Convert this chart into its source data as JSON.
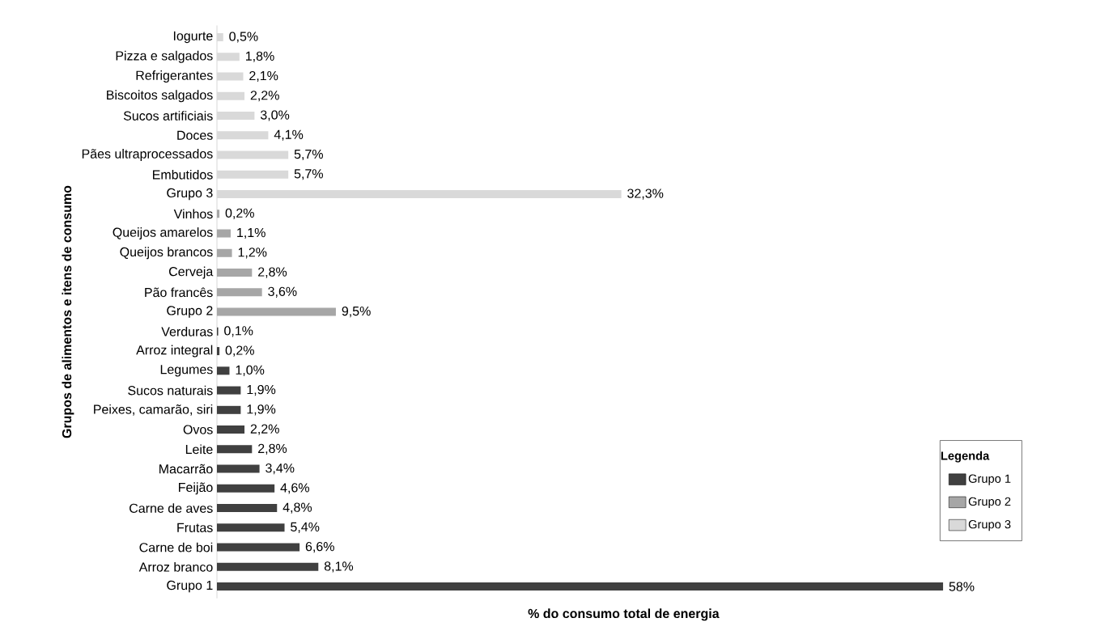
{
  "chart_data": {
    "type": "bar",
    "orientation": "horizontal",
    "xlabel": "% do consumo total de energia",
    "ylabel": "Grupos de alimentos e itens de consumo",
    "legend": "bottom right",
    "legend_title": "Legenda",
    "categories": [
      "Iogurte",
      "Pizza e salgados",
      "Refrigerantes",
      "Biscoitos salgados",
      "Sucos artificiais",
      "Doces",
      "Pães ultraprocessados",
      "Embutidos",
      "Grupo 3",
      "Vinhos",
      "Queijos amarelos",
      "Queijos brancos",
      "Cerveja",
      "Pão francês",
      "Grupo 2",
      "Verduras",
      "Arroz integral",
      "Legumes",
      "Sucos naturais",
      "Peixes, camarão, siri",
      "Ovos",
      "Leite",
      "Macarrão",
      "Feijão",
      "Carne de aves",
      "Frutas",
      "Carne de boi",
      "Arroz branco",
      "Grupo 1"
    ],
    "series": [
      {
        "name": "Grupo 1",
        "color": "#404040",
        "values": [
          null,
          null,
          null,
          null,
          null,
          null,
          null,
          null,
          null,
          null,
          null,
          null,
          null,
          null,
          null,
          0.1,
          0.2,
          1.0,
          1.9,
          1.9,
          2.2,
          2.8,
          3.4,
          4.6,
          4.8,
          5.4,
          6.6,
          8.1,
          58
        ],
        "value_labels": [
          null,
          null,
          null,
          null,
          null,
          null,
          null,
          null,
          null,
          null,
          null,
          null,
          null,
          null,
          null,
          "0,1%",
          "0,2%",
          "1,0%",
          "1,9%",
          "1,9%",
          "2,2%",
          "2,8%",
          "3,4%",
          "4,6%",
          "4,8%",
          "5,4%",
          "6,6%",
          "8,1%",
          "58%"
        ]
      },
      {
        "name": "Grupo 2",
        "color": "#a6a6a6",
        "values": [
          null,
          null,
          null,
          null,
          null,
          null,
          null,
          null,
          null,
          0.2,
          1.1,
          1.2,
          2.8,
          3.6,
          9.5,
          null,
          null,
          null,
          null,
          null,
          null,
          null,
          null,
          null,
          null,
          null,
          null,
          null,
          null
        ],
        "value_labels": [
          null,
          null,
          null,
          null,
          null,
          null,
          null,
          null,
          null,
          "0,2%",
          "1,1%",
          "1,2%",
          "2,8%",
          "3,6%",
          "9,5%",
          null,
          null,
          null,
          null,
          null,
          null,
          null,
          null,
          null,
          null,
          null,
          null,
          null,
          null
        ]
      },
      {
        "name": "Grupo 3",
        "color": "#d9d9d9",
        "values": [
          0.5,
          1.8,
          2.1,
          2.2,
          3.0,
          4.1,
          5.7,
          5.7,
          32.3,
          null,
          null,
          null,
          null,
          null,
          null,
          null,
          null,
          null,
          null,
          null,
          null,
          null,
          null,
          null,
          null,
          null,
          null,
          null,
          null
        ],
        "value_labels": [
          "0,5%",
          "1,8%",
          "2,1%",
          "2,2%",
          "3,0%",
          "4,1%",
          "5,7%",
          "5,7%",
          "32,3%",
          null,
          null,
          null,
          null,
          null,
          null,
          null,
          null,
          null,
          null,
          null,
          null,
          null,
          null,
          null,
          null,
          null,
          null,
          null,
          null
        ]
      }
    ]
  }
}
